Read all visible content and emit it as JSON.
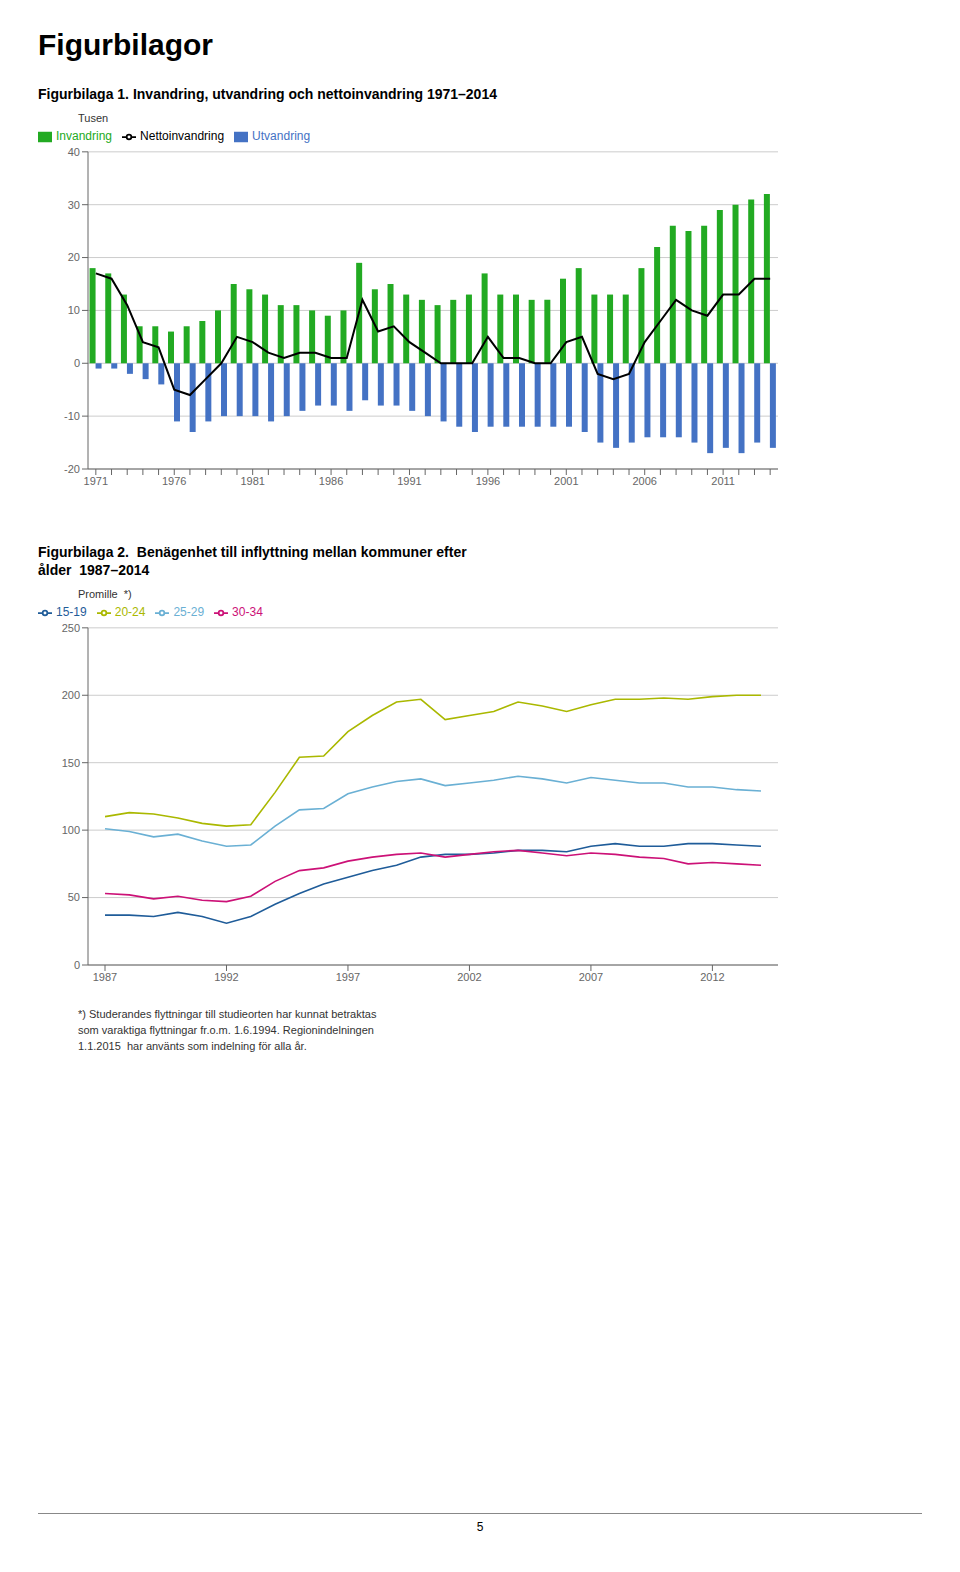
{
  "title": "Figurbilagor",
  "annotations": [
    "5"
  ],
  "chart_data": [
    {
      "type": "bar",
      "title": "Figurbilaga 1. Invandring, utvandring och nettoinvandring 1971–2014",
      "y_label": "Tusen",
      "categories": [
        "1971",
        null,
        null,
        null,
        null,
        "1976",
        null,
        null,
        null,
        null,
        "1981",
        null,
        null,
        null,
        null,
        "1986",
        null,
        null,
        null,
        null,
        "1991",
        null,
        null,
        null,
        null,
        "1996",
        null,
        null,
        null,
        null,
        "2001",
        null,
        null,
        null,
        null,
        "2006",
        null,
        null,
        null,
        null,
        "2011",
        null,
        null,
        null
      ],
      "series": [
        {
          "name": "Invandring",
          "type": "bar",
          "color": "#22aa22",
          "values": [
            18,
            17,
            13,
            7,
            7,
            6,
            7,
            8,
            10,
            15,
            14,
            13,
            11,
            11,
            10,
            9,
            10,
            19,
            14,
            15,
            13,
            12,
            11,
            12,
            13,
            17,
            13,
            13,
            12,
            12,
            16,
            18,
            13,
            13,
            13,
            18,
            22,
            26,
            25,
            26,
            29,
            30,
            31,
            32
          ]
        },
        {
          "name": "Utvandring",
          "type": "bar",
          "color": "#4472c4",
          "values": [
            -1,
            -1,
            -2,
            -3,
            -4,
            -11,
            -13,
            -11,
            -10,
            -10,
            -10,
            -11,
            -10,
            -9,
            -8,
            -8,
            -9,
            -7,
            -8,
            -8,
            -9,
            -10,
            -11,
            -12,
            -13,
            -12,
            -12,
            -12,
            -12,
            -12,
            -12,
            -13,
            -15,
            -16,
            -15,
            -14,
            -14,
            -14,
            -15,
            -17,
            -16,
            -17,
            -15,
            -16
          ]
        },
        {
          "name": "Nettoinvandring",
          "type": "line",
          "color": "#000000",
          "values": [
            17,
            16,
            11,
            4,
            3,
            -5,
            -6,
            -3,
            0,
            5,
            4,
            2,
            1,
            2,
            2,
            1,
            1,
            12,
            6,
            7,
            4,
            2,
            0,
            0,
            0,
            5,
            1,
            1,
            0,
            0,
            4,
            5,
            -2,
            -3,
            -2,
            4,
            8,
            12,
            10,
            9,
            13,
            13,
            16,
            16
          ]
        }
      ],
      "ylim": [
        -20,
        40
      ],
      "yticks": [
        -20,
        -10,
        0,
        10,
        20,
        30,
        40
      ],
      "grid": true,
      "legend": "upper left"
    },
    {
      "type": "line",
      "title": "Figurbilaga 2.  Benägenhet till inflyttning mellan kommuner efter",
      "subtitle": "ålder  1987–2014",
      "y_label": "Promille  *)",
      "x": [
        1987,
        1988,
        1989,
        1990,
        1991,
        1992,
        1993,
        1994,
        1995,
        1996,
        1997,
        1998,
        1999,
        2000,
        2001,
        2002,
        2003,
        2004,
        2005,
        2006,
        2007,
        2008,
        2009,
        2010,
        2011,
        2012,
        2013,
        2014
      ],
      "series": [
        {
          "name": "15-19",
          "color": "#1f5c99",
          "values": [
            37,
            37,
            36,
            39,
            36,
            31,
            36,
            45,
            53,
            60,
            65,
            70,
            74,
            80,
            82,
            82,
            83,
            85,
            85,
            84,
            88,
            90,
            88,
            88,
            90,
            90,
            89,
            88
          ]
        },
        {
          "name": "20-24",
          "color": "#aab800",
          "values": [
            110,
            113,
            112,
            109,
            105,
            103,
            104,
            128,
            154,
            155,
            173,
            185,
            195,
            197,
            182,
            185,
            188,
            195,
            192,
            188,
            193,
            197,
            197,
            198,
            197,
            199,
            200,
            200
          ]
        },
        {
          "name": "25-29",
          "color": "#6ab0d4",
          "values": [
            101,
            99,
            95,
            97,
            92,
            88,
            89,
            103,
            115,
            116,
            127,
            132,
            136,
            138,
            133,
            135,
            137,
            140,
            138,
            135,
            139,
            137,
            135,
            135,
            132,
            132,
            130,
            129
          ]
        },
        {
          "name": "30-34",
          "color": "#cc1177",
          "values": [
            53,
            52,
            49,
            51,
            48,
            47,
            51,
            62,
            70,
            72,
            77,
            80,
            82,
            83,
            80,
            82,
            84,
            85,
            83,
            81,
            83,
            82,
            80,
            79,
            75,
            76,
            75,
            74
          ]
        }
      ],
      "xlim": [
        1986.3,
        2014.7
      ],
      "xticks": [
        1987,
        1992,
        1997,
        2002,
        2007,
        2012
      ],
      "ylim": [
        0,
        250
      ],
      "yticks": [
        0,
        50,
        100,
        150,
        200,
        250
      ],
      "grid": true,
      "legend": "upper left",
      "annotations": [
        "*) Studerandes flyttningar till studieorten har kunnat betraktas",
        "som varaktiga flyttningar fr.o.m. 1.6.1994. Regionindelningen",
        "1.1.2015  har använts som indelning för alla år."
      ]
    }
  ]
}
